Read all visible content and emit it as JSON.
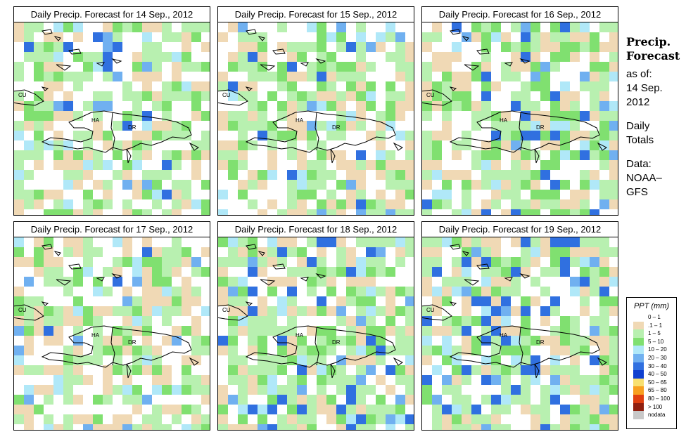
{
  "panels": [
    {
      "title": "Daily Precip. Forecast for  14 Sep., 2012",
      "seed": 14,
      "bias": 0.0
    },
    {
      "title": "Daily Precip. Forecast for  15 Sep., 2012",
      "seed": 15,
      "bias": 0.0
    },
    {
      "title": "Daily Precip. Forecast for  16 Sep., 2012",
      "seed": 16,
      "bias": 0.05
    },
    {
      "title": "Daily Precip. Forecast for  17 Sep., 2012",
      "seed": 17,
      "bias": 0.0
    },
    {
      "title": "Daily Precip. Forecast for  18 Sep., 2012",
      "seed": 18,
      "bias": 0.05
    },
    {
      "title": "Daily Precip. Forecast for  19 Sep., 2012",
      "seed": 19,
      "bias": 0.1
    }
  ],
  "map_labels": {
    "cuba": "CU",
    "haiti": "HA",
    "dominican_republic": "DR"
  },
  "side": {
    "title_line1": "Precip.",
    "title_line2": "Forecast",
    "as_of_label": "as of:",
    "date_line1": "14 Sep.",
    "date_line2": "2012",
    "totals_line1": "Daily",
    "totals_line2": "Totals",
    "data_line1": "Data:",
    "data_line2": "NOAA–",
    "data_line3": "GFS"
  },
  "legend": {
    "title": "PPT (mm)",
    "items": [
      {
        "label": "0 – 1",
        "color": "#ffffff"
      },
      {
        "label": ".1 – 1",
        "color": "#f0d9b5"
      },
      {
        "label": "1 – 5",
        "color": "#b8f0b0"
      },
      {
        "label": "5 – 10",
        "color": "#80e070"
      },
      {
        "label": "10 – 20",
        "color": "#b0e8f8"
      },
      {
        "label": "20 – 30",
        "color": "#70b0f0"
      },
      {
        "label": "30 – 40",
        "color": "#3070e0"
      },
      {
        "label": "40 – 50",
        "color": "#1040d0"
      },
      {
        "label": "50 – 65",
        "color": "#f8e070"
      },
      {
        "label": "65 – 80",
        "color": "#f8a020"
      },
      {
        "label": "80 – 100",
        "color": "#e04010"
      },
      {
        "label": "> 100",
        "color": "#902010"
      },
      {
        "label": "nodata",
        "color": "#c8c8c8"
      }
    ]
  }
}
